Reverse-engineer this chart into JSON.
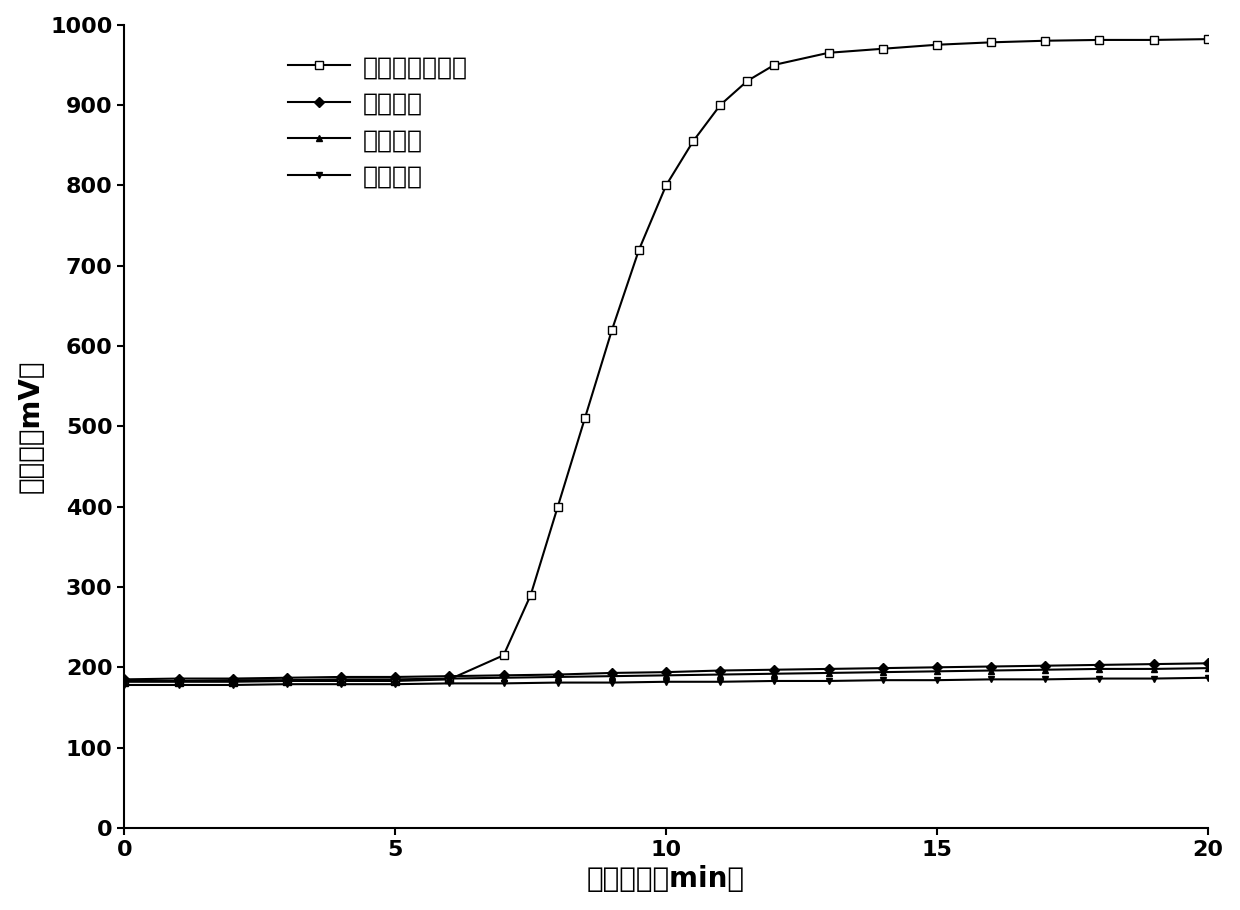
{
  "title": "",
  "xlabel": "反应时间（min）",
  "ylabel": "荧光値（mV）",
  "xlim": [
    0,
    20
  ],
  "ylim": [
    0,
    1000
  ],
  "xticks": [
    0,
    5,
    10,
    15,
    20
  ],
  "yticks": [
    0,
    100,
    200,
    300,
    400,
    500,
    600,
    700,
    800,
    900,
    1000
  ],
  "legend_labels": [
    "金黄色葡萄球菌",
    "沙门氏菌",
    "大肠杆菌",
    "大肠杆菌"
  ],
  "series": [
    {
      "x": [
        0,
        1,
        2,
        3,
        4,
        5,
        6,
        7,
        7.5,
        8,
        8.5,
        9,
        9.5,
        10,
        10.5,
        11,
        11.5,
        12,
        13,
        14,
        15,
        16,
        17,
        18,
        19,
        20
      ],
      "y": [
        182,
        182,
        182,
        183,
        183,
        183,
        185,
        215,
        290,
        400,
        510,
        620,
        720,
        800,
        855,
        900,
        930,
        950,
        965,
        970,
        975,
        978,
        980,
        981,
        981,
        982
      ],
      "marker": "s",
      "marker_size": 6,
      "color": "#000000",
      "linewidth": 1.5,
      "markerfacecolor": "white"
    },
    {
      "x": [
        0,
        1,
        2,
        3,
        4,
        5,
        6,
        7,
        8,
        9,
        10,
        11,
        12,
        13,
        14,
        15,
        16,
        17,
        18,
        19,
        20
      ],
      "y": [
        185,
        186,
        186,
        187,
        188,
        188,
        189,
        190,
        191,
        193,
        194,
        196,
        197,
        198,
        199,
        200,
        201,
        202,
        203,
        204,
        205
      ],
      "marker": "D",
      "marker_size": 5,
      "color": "#000000",
      "linewidth": 1.5,
      "markerfacecolor": "#000000"
    },
    {
      "x": [
        0,
        1,
        2,
        3,
        4,
        5,
        6,
        7,
        8,
        9,
        10,
        11,
        12,
        13,
        14,
        15,
        16,
        17,
        18,
        19,
        20
      ],
      "y": [
        183,
        183,
        184,
        184,
        185,
        185,
        186,
        187,
        188,
        189,
        190,
        191,
        192,
        193,
        194,
        195,
        196,
        197,
        198,
        198,
        199
      ],
      "marker": "^",
      "marker_size": 5,
      "color": "#000000",
      "linewidth": 1.5,
      "markerfacecolor": "#000000"
    },
    {
      "x": [
        0,
        1,
        2,
        3,
        4,
        5,
        6,
        7,
        8,
        9,
        10,
        11,
        12,
        13,
        14,
        15,
        16,
        17,
        18,
        19,
        20
      ],
      "y": [
        178,
        178,
        178,
        179,
        179,
        179,
        180,
        180,
        181,
        181,
        182,
        182,
        183,
        183,
        184,
        184,
        185,
        185,
        186,
        186,
        187
      ],
      "marker": "v",
      "marker_size": 5,
      "color": "#000000",
      "linewidth": 1.5,
      "markerfacecolor": "#000000"
    }
  ],
  "background_color": "#ffffff",
  "font_size_label": 20,
  "font_size_tick": 16,
  "font_size_legend": 18
}
